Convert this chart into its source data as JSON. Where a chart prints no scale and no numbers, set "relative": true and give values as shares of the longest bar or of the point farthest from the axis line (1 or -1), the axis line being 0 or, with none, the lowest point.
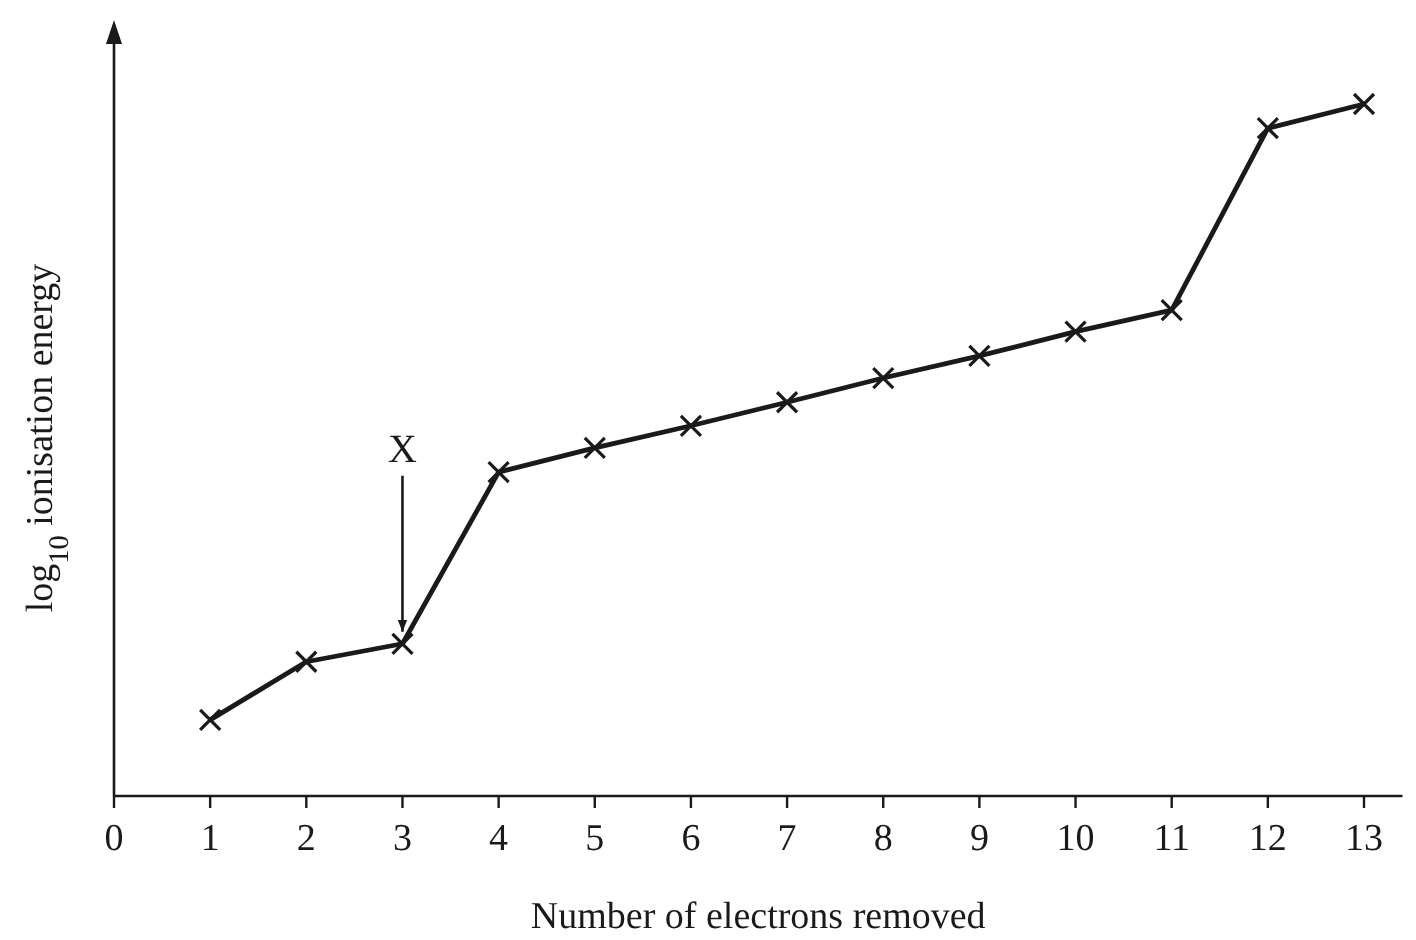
{
  "chart_data": {
    "type": "line",
    "xlabel": "Number of electrons removed",
    "ylabel": "log$_{10}$ ionisation energy",
    "relative": true,
    "x": [
      1,
      2,
      3,
      4,
      5,
      6,
      7,
      8,
      9,
      10,
      11,
      12,
      13
    ],
    "series": [
      {
        "color": "#1a1a1a",
        "values": [
          0.11,
          0.194,
          0.22,
          0.468,
          0.503,
          0.535,
          0.569,
          0.604,
          0.636,
          0.671,
          0.702,
          0.965,
          1
        ]
      }
    ],
    "xlim": [
      0,
      13.4
    ],
    "xticks": [
      0,
      1,
      2,
      3,
      4,
      5,
      6,
      7,
      8,
      9,
      10,
      11,
      12,
      13
    ],
    "marker": "cross",
    "line_style": "solid",
    "annotations": [
      {
        "text": "X",
        "x": 3,
        "y": 0.22
      }
    ]
  }
}
